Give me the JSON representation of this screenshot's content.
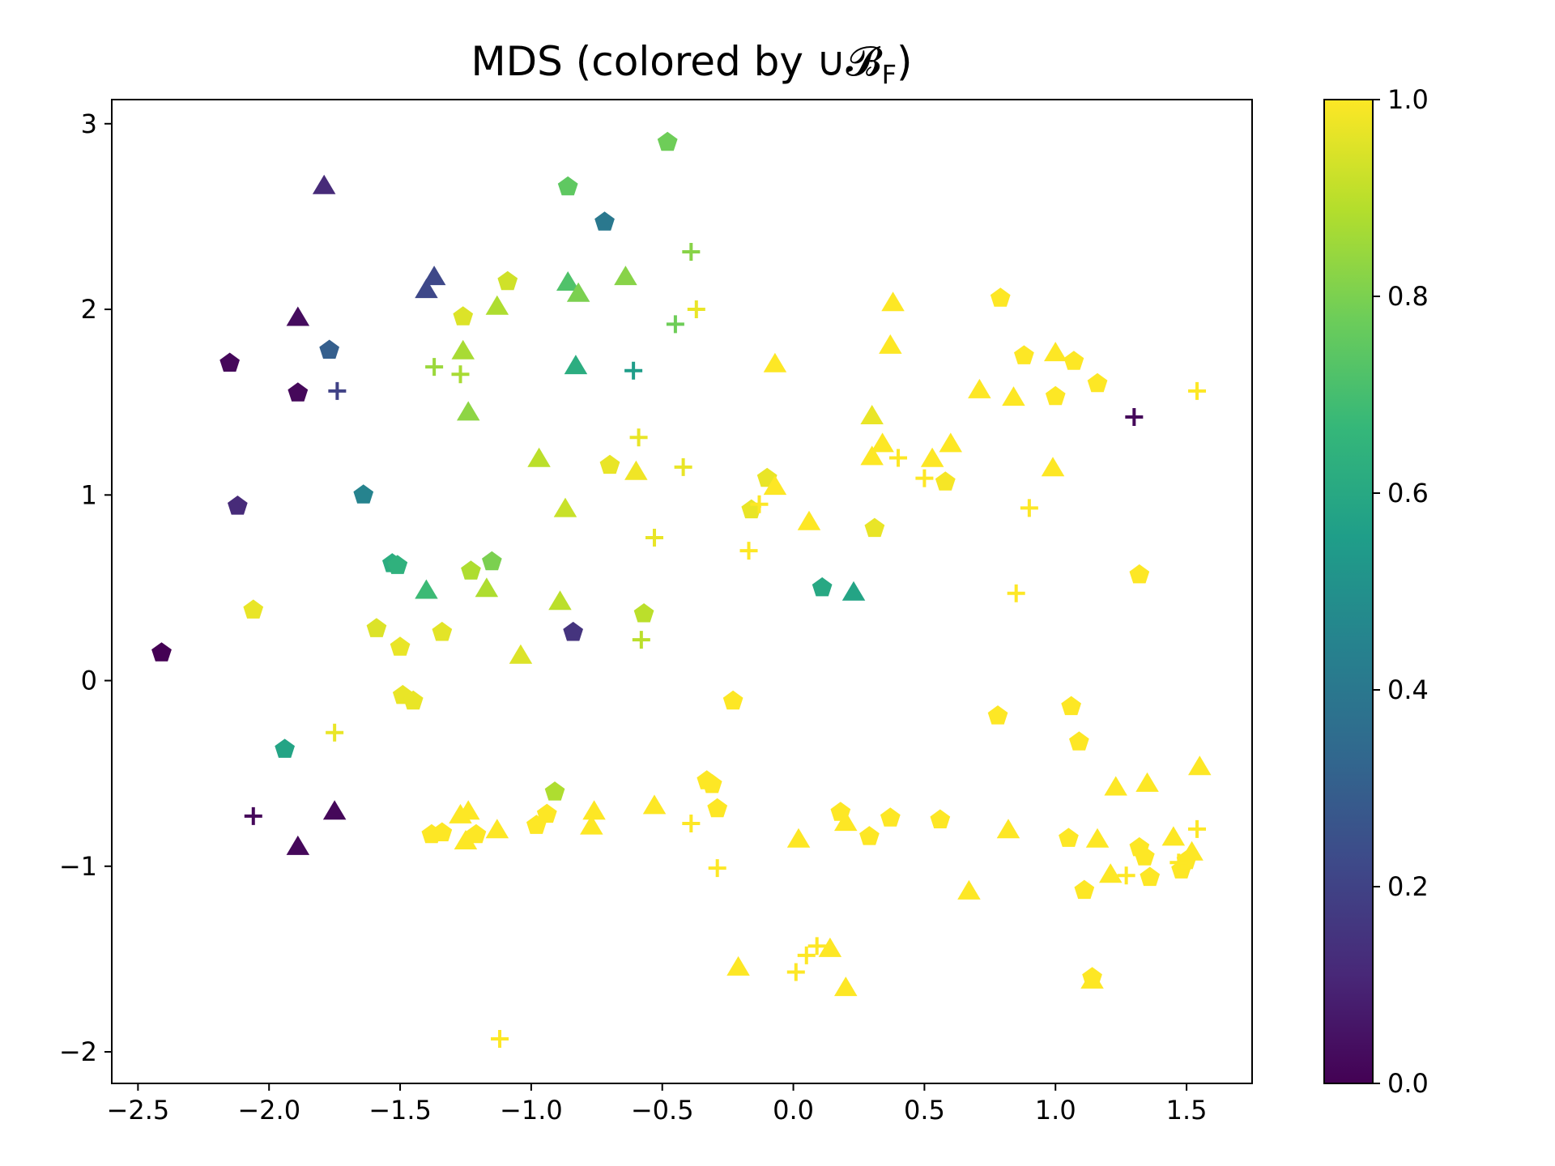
{
  "chart_data": {
    "type": "scatter",
    "title": "MDS (colored by ∪𝓑",
    "title_sub": "F",
    "title_end": ")",
    "xlabel": "",
    "ylabel": "",
    "xlim": [
      -2.6,
      1.75
    ],
    "ylim": [
      -2.17,
      3.13
    ],
    "x_ticks": [
      -2.5,
      -2.0,
      -1.5,
      -1.0,
      -0.5,
      0.0,
      0.5,
      1.0,
      1.5
    ],
    "x_tick_labels": [
      "−2.5",
      "−2.0",
      "−1.5",
      "−1.0",
      "−0.5",
      "0.0",
      "0.5",
      "1.0",
      "1.5"
    ],
    "y_ticks": [
      -2,
      -1,
      0,
      1,
      2,
      3
    ],
    "y_tick_labels": [
      "−2",
      "−1",
      "0",
      "1",
      "2",
      "3"
    ],
    "colorbar": {
      "colormap": "viridis",
      "range": [
        0.0,
        1.0
      ],
      "ticks": [
        0.0,
        0.2,
        0.4,
        0.6,
        0.8,
        1.0
      ],
      "tick_labels": [
        "0.0",
        "0.2",
        "0.4",
        "0.6",
        "0.8",
        "1.0"
      ]
    },
    "grid": false,
    "marker_shapes": [
      "pentagon",
      "triangle",
      "plus"
    ],
    "points": [
      {
        "x": -0.48,
        "y": 2.9,
        "c": 0.78,
        "m": "pentagon"
      },
      {
        "x": -0.86,
        "y": 2.66,
        "c": 0.75,
        "m": "pentagon"
      },
      {
        "x": -0.72,
        "y": 2.47,
        "c": 0.4,
        "m": "pentagon"
      },
      {
        "x": -1.77,
        "y": 1.78,
        "c": 0.3,
        "m": "pentagon"
      },
      {
        "x": -2.15,
        "y": 1.71,
        "c": 0.02,
        "m": "pentagon"
      },
      {
        "x": -1.89,
        "y": 1.55,
        "c": 0.02,
        "m": "pentagon"
      },
      {
        "x": -2.12,
        "y": 0.94,
        "c": 0.12,
        "m": "pentagon"
      },
      {
        "x": -1.64,
        "y": 1.0,
        "c": 0.45,
        "m": "pentagon"
      },
      {
        "x": -1.53,
        "y": 0.63,
        "c": 0.62,
        "m": "pentagon"
      },
      {
        "x": -1.51,
        "y": 0.62,
        "c": 0.64,
        "m": "pentagon"
      },
      {
        "x": -1.15,
        "y": 0.64,
        "c": 0.8,
        "m": "pentagon"
      },
      {
        "x": -1.23,
        "y": 0.59,
        "c": 0.88,
        "m": "pentagon"
      },
      {
        "x": -1.26,
        "y": 1.96,
        "c": 0.95,
        "m": "pentagon"
      },
      {
        "x": -1.09,
        "y": 2.15,
        "c": 0.93,
        "m": "pentagon"
      },
      {
        "x": -2.06,
        "y": 0.38,
        "c": 0.97,
        "m": "pentagon"
      },
      {
        "x": -2.41,
        "y": 0.15,
        "c": 0.0,
        "m": "pentagon"
      },
      {
        "x": -1.59,
        "y": 0.28,
        "c": 0.95,
        "m": "pentagon"
      },
      {
        "x": -1.5,
        "y": 0.18,
        "c": 0.97,
        "m": "pentagon"
      },
      {
        "x": -1.34,
        "y": 0.26,
        "c": 0.96,
        "m": "pentagon"
      },
      {
        "x": -0.84,
        "y": 0.26,
        "c": 0.15,
        "m": "pentagon"
      },
      {
        "x": -0.57,
        "y": 0.36,
        "c": 0.9,
        "m": "pentagon"
      },
      {
        "x": -1.49,
        "y": -0.08,
        "c": 0.97,
        "m": "pentagon"
      },
      {
        "x": -1.45,
        "y": -0.11,
        "c": 0.97,
        "m": "pentagon"
      },
      {
        "x": -1.94,
        "y": -0.37,
        "c": 0.58,
        "m": "pentagon"
      },
      {
        "x": -0.91,
        "y": -0.6,
        "c": 0.88,
        "m": "pentagon"
      },
      {
        "x": -0.7,
        "y": 1.16,
        "c": 0.97,
        "m": "pentagon"
      },
      {
        "x": -0.1,
        "y": 1.09,
        "c": 0.97,
        "m": "pentagon"
      },
      {
        "x": -0.16,
        "y": 0.92,
        "c": 0.97,
        "m": "pentagon"
      },
      {
        "x": 0.11,
        "y": 0.5,
        "c": 0.6,
        "m": "pentagon"
      },
      {
        "x": 0.31,
        "y": 0.82,
        "c": 0.97,
        "m": "pentagon"
      },
      {
        "x": 0.58,
        "y": 1.07,
        "c": 0.99,
        "m": "pentagon"
      },
      {
        "x": 0.79,
        "y": 2.06,
        "c": 1.0,
        "m": "pentagon"
      },
      {
        "x": 0.88,
        "y": 1.75,
        "c": 1.0,
        "m": "pentagon"
      },
      {
        "x": 1.0,
        "y": 1.53,
        "c": 1.0,
        "m": "pentagon"
      },
      {
        "x": 1.07,
        "y": 1.72,
        "c": 1.0,
        "m": "pentagon"
      },
      {
        "x": 1.16,
        "y": 1.6,
        "c": 1.0,
        "m": "pentagon"
      },
      {
        "x": 1.32,
        "y": 0.57,
        "c": 1.0,
        "m": "pentagon"
      },
      {
        "x": -0.23,
        "y": -0.11,
        "c": 1.0,
        "m": "pentagon"
      },
      {
        "x": -0.33,
        "y": -0.54,
        "c": 1.0,
        "m": "pentagon"
      },
      {
        "x": -0.31,
        "y": -0.56,
        "c": 1.0,
        "m": "pentagon"
      },
      {
        "x": -0.29,
        "y": -0.69,
        "c": 1.0,
        "m": "pentagon"
      },
      {
        "x": -0.94,
        "y": -0.72,
        "c": 1.0,
        "m": "pentagon"
      },
      {
        "x": -0.98,
        "y": -0.78,
        "c": 1.0,
        "m": "pentagon"
      },
      {
        "x": -1.34,
        "y": -0.82,
        "c": 1.0,
        "m": "pentagon"
      },
      {
        "x": -1.38,
        "y": -0.83,
        "c": 1.0,
        "m": "pentagon"
      },
      {
        "x": -1.21,
        "y": -0.83,
        "c": 1.0,
        "m": "pentagon"
      },
      {
        "x": 0.18,
        "y": -0.71,
        "c": 1.0,
        "m": "pentagon"
      },
      {
        "x": 0.29,
        "y": -0.84,
        "c": 1.0,
        "m": "pentagon"
      },
      {
        "x": 0.37,
        "y": -0.74,
        "c": 1.0,
        "m": "pentagon"
      },
      {
        "x": 0.56,
        "y": -0.75,
        "c": 1.0,
        "m": "pentagon"
      },
      {
        "x": 0.78,
        "y": -0.19,
        "c": 1.0,
        "m": "pentagon"
      },
      {
        "x": 1.06,
        "y": -0.14,
        "c": 1.0,
        "m": "pentagon"
      },
      {
        "x": 1.09,
        "y": -0.33,
        "c": 1.0,
        "m": "pentagon"
      },
      {
        "x": 1.05,
        "y": -0.85,
        "c": 1.0,
        "m": "pentagon"
      },
      {
        "x": 1.11,
        "y": -1.13,
        "c": 1.0,
        "m": "pentagon"
      },
      {
        "x": 1.32,
        "y": -0.9,
        "c": 1.0,
        "m": "pentagon"
      },
      {
        "x": 1.34,
        "y": -0.95,
        "c": 1.0,
        "m": "pentagon"
      },
      {
        "x": 1.36,
        "y": -1.06,
        "c": 1.0,
        "m": "pentagon"
      },
      {
        "x": 1.48,
        "y": -1.02,
        "c": 1.0,
        "m": "pentagon"
      },
      {
        "x": 1.5,
        "y": -0.97,
        "c": 1.0,
        "m": "pentagon"
      },
      {
        "x": 1.14,
        "y": -1.6,
        "c": 1.0,
        "m": "pentagon"
      },
      {
        "x": -1.79,
        "y": 2.66,
        "c": 0.12,
        "m": "triangle"
      },
      {
        "x": -1.37,
        "y": 2.17,
        "c": 0.22,
        "m": "triangle"
      },
      {
        "x": -1.4,
        "y": 2.1,
        "c": 0.22,
        "m": "triangle"
      },
      {
        "x": -1.89,
        "y": 1.95,
        "c": 0.03,
        "m": "triangle"
      },
      {
        "x": -0.86,
        "y": 2.14,
        "c": 0.72,
        "m": "triangle"
      },
      {
        "x": -0.82,
        "y": 2.08,
        "c": 0.8,
        "m": "triangle"
      },
      {
        "x": -0.64,
        "y": 2.17,
        "c": 0.82,
        "m": "triangle"
      },
      {
        "x": -1.13,
        "y": 2.01,
        "c": 0.88,
        "m": "triangle"
      },
      {
        "x": -1.26,
        "y": 1.77,
        "c": 0.87,
        "m": "triangle"
      },
      {
        "x": -1.24,
        "y": 1.44,
        "c": 0.83,
        "m": "triangle"
      },
      {
        "x": -0.83,
        "y": 1.69,
        "c": 0.62,
        "m": "triangle"
      },
      {
        "x": -0.97,
        "y": 1.19,
        "c": 0.9,
        "m": "triangle"
      },
      {
        "x": -0.87,
        "y": 0.92,
        "c": 0.92,
        "m": "triangle"
      },
      {
        "x": -1.4,
        "y": 0.48,
        "c": 0.68,
        "m": "triangle"
      },
      {
        "x": -1.17,
        "y": 0.49,
        "c": 0.88,
        "m": "triangle"
      },
      {
        "x": -0.89,
        "y": 0.42,
        "c": 0.9,
        "m": "triangle"
      },
      {
        "x": -1.04,
        "y": 0.13,
        "c": 0.95,
        "m": "triangle"
      },
      {
        "x": -1.75,
        "y": -0.71,
        "c": 0.02,
        "m": "triangle"
      },
      {
        "x": -1.89,
        "y": -0.9,
        "c": 0.02,
        "m": "triangle"
      },
      {
        "x": -0.6,
        "y": 1.12,
        "c": 0.98,
        "m": "triangle"
      },
      {
        "x": -0.07,
        "y": 1.7,
        "c": 1.0,
        "m": "triangle"
      },
      {
        "x": -0.07,
        "y": 1.04,
        "c": 1.0,
        "m": "triangle"
      },
      {
        "x": 0.06,
        "y": 0.85,
        "c": 1.0,
        "m": "triangle"
      },
      {
        "x": 0.23,
        "y": 0.47,
        "c": 0.58,
        "m": "triangle"
      },
      {
        "x": 0.3,
        "y": 1.42,
        "c": 0.97,
        "m": "triangle"
      },
      {
        "x": 0.34,
        "y": 1.27,
        "c": 1.0,
        "m": "triangle"
      },
      {
        "x": 0.3,
        "y": 1.2,
        "c": 1.0,
        "m": "triangle"
      },
      {
        "x": 0.38,
        "y": 2.03,
        "c": 1.0,
        "m": "triangle"
      },
      {
        "x": 0.37,
        "y": 1.8,
        "c": 1.0,
        "m": "triangle"
      },
      {
        "x": 0.53,
        "y": 1.19,
        "c": 1.0,
        "m": "triangle"
      },
      {
        "x": 0.6,
        "y": 1.27,
        "c": 1.0,
        "m": "triangle"
      },
      {
        "x": 0.71,
        "y": 1.56,
        "c": 1.0,
        "m": "triangle"
      },
      {
        "x": 0.84,
        "y": 1.52,
        "c": 1.0,
        "m": "triangle"
      },
      {
        "x": 1.0,
        "y": 1.76,
        "c": 1.0,
        "m": "triangle"
      },
      {
        "x": 0.99,
        "y": 1.14,
        "c": 1.0,
        "m": "triangle"
      },
      {
        "x": -1.24,
        "y": -0.71,
        "c": 1.0,
        "m": "triangle"
      },
      {
        "x": -1.27,
        "y": -0.73,
        "c": 1.0,
        "m": "triangle"
      },
      {
        "x": -1.25,
        "y": -0.87,
        "c": 1.0,
        "m": "triangle"
      },
      {
        "x": -1.13,
        "y": -0.81,
        "c": 1.0,
        "m": "triangle"
      },
      {
        "x": -0.76,
        "y": -0.71,
        "c": 1.0,
        "m": "triangle"
      },
      {
        "x": -0.77,
        "y": -0.79,
        "c": 1.0,
        "m": "triangle"
      },
      {
        "x": -0.53,
        "y": -0.68,
        "c": 1.0,
        "m": "triangle"
      },
      {
        "x": 0.02,
        "y": -0.86,
        "c": 1.0,
        "m": "triangle"
      },
      {
        "x": 0.2,
        "y": -0.77,
        "c": 1.0,
        "m": "triangle"
      },
      {
        "x": 0.82,
        "y": -0.81,
        "c": 1.0,
        "m": "triangle"
      },
      {
        "x": 0.67,
        "y": -1.14,
        "c": 1.0,
        "m": "triangle"
      },
      {
        "x": 1.16,
        "y": -0.86,
        "c": 1.0,
        "m": "triangle"
      },
      {
        "x": 1.23,
        "y": -0.58,
        "c": 1.0,
        "m": "triangle"
      },
      {
        "x": 1.35,
        "y": -0.56,
        "c": 1.0,
        "m": "triangle"
      },
      {
        "x": 1.21,
        "y": -1.05,
        "c": 1.0,
        "m": "triangle"
      },
      {
        "x": 1.55,
        "y": -0.47,
        "c": 1.0,
        "m": "triangle"
      },
      {
        "x": 1.45,
        "y": -0.85,
        "c": 1.0,
        "m": "triangle"
      },
      {
        "x": 1.52,
        "y": -0.93,
        "c": 1.0,
        "m": "triangle"
      },
      {
        "x": -0.21,
        "y": -1.55,
        "c": 1.0,
        "m": "triangle"
      },
      {
        "x": 0.14,
        "y": -1.45,
        "c": 1.0,
        "m": "triangle"
      },
      {
        "x": 0.2,
        "y": -1.66,
        "c": 1.0,
        "m": "triangle"
      },
      {
        "x": 1.14,
        "y": -1.62,
        "c": 1.0,
        "m": "triangle"
      },
      {
        "x": -0.39,
        "y": 2.31,
        "c": 0.82,
        "m": "plus"
      },
      {
        "x": -0.37,
        "y": 2.0,
        "c": 0.97,
        "m": "plus"
      },
      {
        "x": -0.45,
        "y": 1.92,
        "c": 0.78,
        "m": "plus"
      },
      {
        "x": -1.37,
        "y": 1.69,
        "c": 0.85,
        "m": "plus"
      },
      {
        "x": -1.27,
        "y": 1.65,
        "c": 0.87,
        "m": "plus"
      },
      {
        "x": -0.61,
        "y": 1.67,
        "c": 0.55,
        "m": "plus"
      },
      {
        "x": -1.74,
        "y": 1.56,
        "c": 0.2,
        "m": "plus"
      },
      {
        "x": -0.59,
        "y": 1.31,
        "c": 0.97,
        "m": "plus"
      },
      {
        "x": -0.42,
        "y": 1.15,
        "c": 0.97,
        "m": "plus"
      },
      {
        "x": -0.53,
        "y": 0.77,
        "c": 0.97,
        "m": "plus"
      },
      {
        "x": -0.58,
        "y": 0.22,
        "c": 0.9,
        "m": "plus"
      },
      {
        "x": -0.17,
        "y": 0.7,
        "c": 1.0,
        "m": "plus"
      },
      {
        "x": -0.13,
        "y": 0.95,
        "c": 1.0,
        "m": "plus"
      },
      {
        "x": 0.4,
        "y": 1.2,
        "c": 1.0,
        "m": "plus"
      },
      {
        "x": 0.5,
        "y": 1.09,
        "c": 1.0,
        "m": "plus"
      },
      {
        "x": 0.9,
        "y": 0.93,
        "c": 1.0,
        "m": "plus"
      },
      {
        "x": 0.85,
        "y": 0.47,
        "c": 1.0,
        "m": "plus"
      },
      {
        "x": 1.3,
        "y": 1.42,
        "c": 0.02,
        "m": "plus"
      },
      {
        "x": 1.54,
        "y": 1.56,
        "c": 1.0,
        "m": "plus"
      },
      {
        "x": -1.75,
        "y": -0.28,
        "c": 0.97,
        "m": "plus"
      },
      {
        "x": -2.06,
        "y": -0.73,
        "c": 0.02,
        "m": "plus"
      },
      {
        "x": -0.39,
        "y": -0.77,
        "c": 1.0,
        "m": "plus"
      },
      {
        "x": -0.29,
        "y": -1.01,
        "c": 1.0,
        "m": "plus"
      },
      {
        "x": 0.01,
        "y": -1.57,
        "c": 1.0,
        "m": "plus"
      },
      {
        "x": 0.05,
        "y": -1.48,
        "c": 1.0,
        "m": "plus"
      },
      {
        "x": 0.09,
        "y": -1.43,
        "c": 1.0,
        "m": "plus"
      },
      {
        "x": -1.12,
        "y": -1.93,
        "c": 1.0,
        "m": "plus"
      },
      {
        "x": 1.27,
        "y": -1.05,
        "c": 1.0,
        "m": "plus"
      },
      {
        "x": 1.54,
        "y": -0.8,
        "c": 1.0,
        "m": "plus"
      },
      {
        "x": 1.47,
        "y": -0.98,
        "c": 1.0,
        "m": "plus"
      }
    ]
  }
}
